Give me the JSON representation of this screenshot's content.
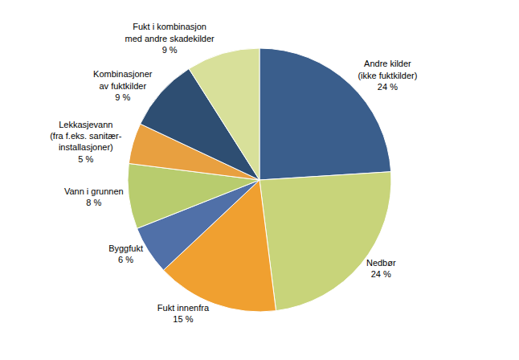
{
  "chart_data": {
    "type": "pie",
    "categories": [
      "Andre kilder\n(ikke fuktkilder)\n24 %",
      "Nedbør\n24 %",
      "Fukt innenfra\n15 %",
      "Byggfukt\n6 %",
      "Vann i grunnen\n8 %",
      "Lekkasjevann\n(fra f.eks. sanitær-\ninstallasjoner)\n5 %",
      "Kombinasjoner\nav fuktkilder\n9 %",
      "Fukt i kombinasjon\nmed andre skadekilder\n9 %"
    ],
    "values": [
      24,
      24,
      15,
      6,
      8,
      5,
      9,
      9
    ],
    "colors": [
      "#3a5e8c",
      "#c8d47a",
      "#f0a030",
      "#5070a8",
      "#b8cc6e",
      "#e8a040",
      "#2e4e72",
      "#d8e09a"
    ]
  }
}
